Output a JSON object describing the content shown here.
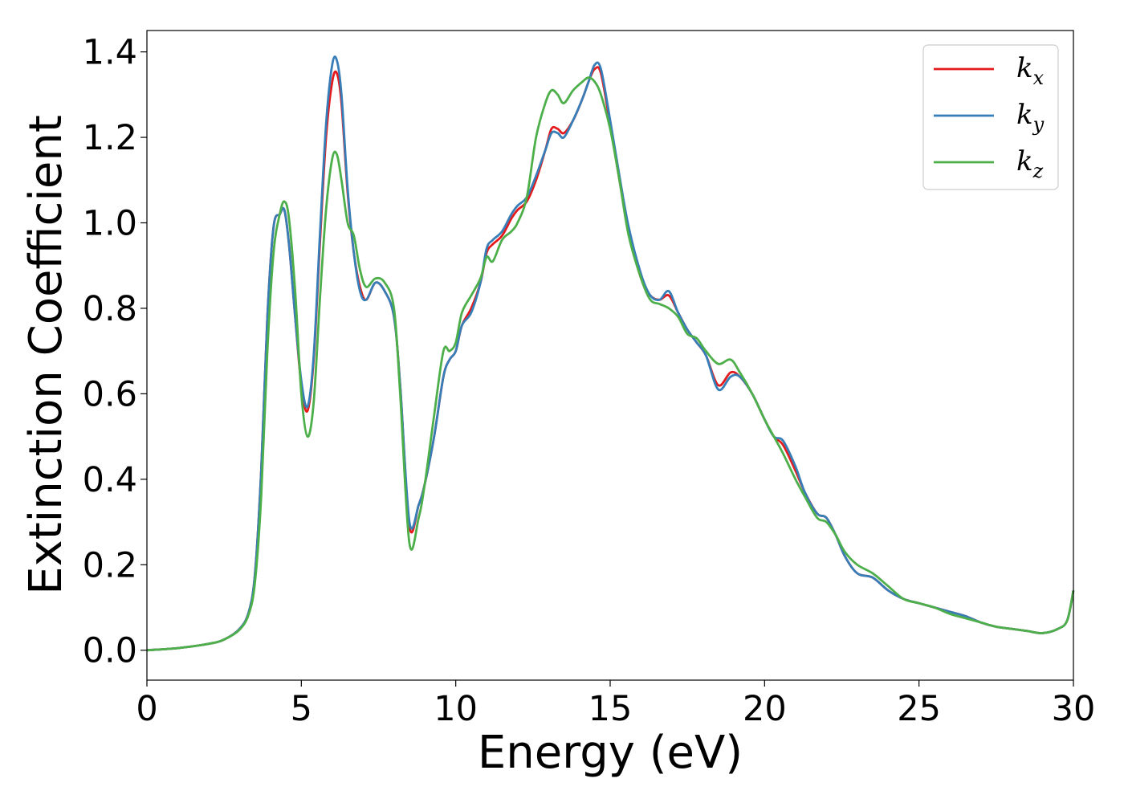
{
  "chart_data": {
    "type": "line",
    "title": "",
    "xlabel": "Energy (eV)",
    "ylabel": "Extinction Coefficient",
    "xlim": [
      0,
      30
    ],
    "ylim": [
      -0.07,
      1.45
    ],
    "xticks": [
      0,
      5,
      10,
      15,
      20,
      25,
      30
    ],
    "xtick_labels": [
      "0",
      "5",
      "10",
      "15",
      "20",
      "25",
      "30"
    ],
    "yticks": [
      0.0,
      0.2,
      0.4,
      0.6,
      0.8,
      1.0,
      1.2,
      1.4
    ],
    "ytick_labels": [
      "0.0",
      "0.2",
      "0.4",
      "0.6",
      "0.8",
      "1.0",
      "1.2",
      "1.4"
    ],
    "grid": false,
    "legend_position": "top-right",
    "series": [
      {
        "name": "k_x",
        "label_main": "k",
        "label_sub": "x",
        "color": "#e41a1c",
        "x": [
          0,
          1,
          2,
          2.5,
          3,
          3.3,
          3.5,
          3.7,
          3.9,
          4.1,
          4.3,
          4.45,
          4.6,
          4.8,
          5.0,
          5.2,
          5.4,
          5.6,
          5.8,
          6.0,
          6.15,
          6.3,
          6.5,
          6.7,
          6.9,
          7.1,
          7.4,
          7.7,
          8.0,
          8.2,
          8.5,
          8.8,
          9.0,
          9.3,
          9.6,
          9.8,
          10.0,
          10.2,
          10.5,
          10.8,
          11.0,
          11.2,
          11.5,
          11.8,
          12.0,
          12.3,
          12.6,
          12.9,
          13.1,
          13.3,
          13.5,
          13.8,
          14.1,
          14.3,
          14.5,
          14.7,
          15.0,
          15.3,
          15.6,
          16.0,
          16.3,
          16.6,
          16.9,
          17.2,
          17.5,
          17.8,
          18.1,
          18.5,
          18.9,
          19.2,
          19.6,
          20.0,
          20.3,
          20.6,
          21.0,
          21.3,
          21.7,
          22.0,
          22.3,
          22.6,
          23.0,
          23.5,
          24.0,
          24.5,
          25.0,
          25.5,
          26.0,
          26.5,
          27.0,
          27.5,
          28.0,
          28.5,
          29.0,
          29.5,
          29.8,
          30.0
        ],
        "y": [
          0.0,
          0.005,
          0.015,
          0.025,
          0.05,
          0.09,
          0.18,
          0.42,
          0.78,
          0.99,
          1.02,
          1.03,
          0.95,
          0.78,
          0.62,
          0.56,
          0.68,
          0.95,
          1.2,
          1.33,
          1.35,
          1.28,
          1.07,
          0.93,
          0.85,
          0.82,
          0.86,
          0.84,
          0.78,
          0.62,
          0.29,
          0.34,
          0.39,
          0.5,
          0.64,
          0.68,
          0.7,
          0.76,
          0.8,
          0.86,
          0.93,
          0.95,
          0.97,
          1.01,
          1.03,
          1.05,
          1.1,
          1.17,
          1.22,
          1.22,
          1.21,
          1.24,
          1.29,
          1.33,
          1.36,
          1.35,
          1.23,
          1.1,
          0.98,
          0.87,
          0.83,
          0.82,
          0.83,
          0.79,
          0.75,
          0.72,
          0.69,
          0.62,
          0.65,
          0.64,
          0.6,
          0.54,
          0.5,
          0.48,
          0.42,
          0.37,
          0.32,
          0.31,
          0.27,
          0.22,
          0.18,
          0.17,
          0.14,
          0.12,
          0.11,
          0.1,
          0.09,
          0.08,
          0.065,
          0.055,
          0.05,
          0.045,
          0.04,
          0.05,
          0.07,
          0.14
        ]
      },
      {
        "name": "k_y",
        "label_main": "k",
        "label_sub": "y",
        "color": "#377eb8",
        "x": [
          0,
          1,
          2,
          2.5,
          3,
          3.3,
          3.5,
          3.7,
          3.9,
          4.1,
          4.3,
          4.45,
          4.6,
          4.8,
          5.0,
          5.2,
          5.4,
          5.6,
          5.8,
          6.0,
          6.15,
          6.3,
          6.5,
          6.7,
          6.9,
          7.1,
          7.4,
          7.7,
          8.0,
          8.2,
          8.5,
          8.8,
          9.0,
          9.3,
          9.6,
          9.8,
          10.0,
          10.2,
          10.5,
          10.8,
          11.0,
          11.2,
          11.5,
          11.8,
          12.0,
          12.3,
          12.6,
          12.9,
          13.1,
          13.3,
          13.5,
          13.8,
          14.1,
          14.3,
          14.5,
          14.7,
          15.0,
          15.3,
          15.6,
          16.0,
          16.3,
          16.6,
          16.9,
          17.2,
          17.5,
          17.8,
          18.1,
          18.5,
          18.9,
          19.2,
          19.6,
          20.0,
          20.3,
          20.6,
          21.0,
          21.3,
          21.7,
          22.0,
          22.3,
          22.6,
          23.0,
          23.5,
          24.0,
          24.5,
          25.0,
          25.5,
          26.0,
          26.5,
          27.0,
          27.5,
          28.0,
          28.5,
          29.0,
          29.5,
          29.8,
          30.0
        ],
        "y": [
          0.0,
          0.005,
          0.015,
          0.025,
          0.05,
          0.09,
          0.18,
          0.42,
          0.78,
          0.99,
          1.02,
          1.03,
          0.95,
          0.78,
          0.63,
          0.57,
          0.69,
          0.97,
          1.23,
          1.37,
          1.38,
          1.3,
          1.08,
          0.93,
          0.84,
          0.82,
          0.86,
          0.84,
          0.78,
          0.62,
          0.3,
          0.34,
          0.39,
          0.5,
          0.64,
          0.68,
          0.7,
          0.76,
          0.79,
          0.86,
          0.94,
          0.96,
          0.98,
          1.02,
          1.04,
          1.06,
          1.11,
          1.17,
          1.21,
          1.21,
          1.2,
          1.24,
          1.29,
          1.33,
          1.37,
          1.36,
          1.24,
          1.11,
          0.99,
          0.88,
          0.83,
          0.82,
          0.84,
          0.79,
          0.75,
          0.72,
          0.69,
          0.61,
          0.64,
          0.64,
          0.6,
          0.54,
          0.5,
          0.49,
          0.43,
          0.37,
          0.32,
          0.31,
          0.27,
          0.22,
          0.18,
          0.17,
          0.14,
          0.12,
          0.11,
          0.1,
          0.09,
          0.08,
          0.065,
          0.055,
          0.05,
          0.045,
          0.04,
          0.05,
          0.07,
          0.14
        ]
      },
      {
        "name": "k_z",
        "label_main": "k",
        "label_sub": "z",
        "color": "#4daf4a",
        "x": [
          0,
          1,
          2,
          2.5,
          3,
          3.3,
          3.5,
          3.7,
          3.9,
          4.1,
          4.3,
          4.45,
          4.6,
          4.8,
          5.0,
          5.2,
          5.4,
          5.6,
          5.8,
          6.0,
          6.15,
          6.3,
          6.5,
          6.7,
          6.9,
          7.1,
          7.4,
          7.7,
          8.0,
          8.2,
          8.5,
          8.8,
          9.0,
          9.3,
          9.6,
          9.8,
          10.0,
          10.2,
          10.5,
          10.8,
          11.0,
          11.2,
          11.5,
          11.8,
          12.0,
          12.3,
          12.6,
          12.9,
          13.1,
          13.3,
          13.5,
          13.8,
          14.1,
          14.3,
          14.5,
          14.7,
          15.0,
          15.3,
          15.6,
          16.0,
          16.3,
          16.6,
          16.9,
          17.2,
          17.5,
          17.8,
          18.1,
          18.5,
          18.9,
          19.2,
          19.6,
          20.0,
          20.3,
          20.6,
          21.0,
          21.3,
          21.7,
          22.0,
          22.3,
          22.6,
          23.0,
          23.5,
          24.0,
          24.5,
          25.0,
          25.5,
          26.0,
          26.5,
          27.0,
          27.5,
          28.0,
          28.5,
          29.0,
          29.5,
          29.8,
          30.0
        ],
        "y": [
          0.0,
          0.005,
          0.015,
          0.025,
          0.048,
          0.085,
          0.16,
          0.36,
          0.7,
          0.93,
          1.02,
          1.05,
          1.01,
          0.84,
          0.6,
          0.5,
          0.58,
          0.82,
          1.03,
          1.15,
          1.16,
          1.1,
          1.0,
          0.97,
          0.89,
          0.85,
          0.87,
          0.86,
          0.8,
          0.6,
          0.25,
          0.31,
          0.39,
          0.55,
          0.7,
          0.7,
          0.72,
          0.79,
          0.83,
          0.87,
          0.92,
          0.91,
          0.96,
          0.98,
          1.0,
          1.06,
          1.2,
          1.28,
          1.31,
          1.3,
          1.28,
          1.31,
          1.33,
          1.34,
          1.33,
          1.3,
          1.22,
          1.1,
          0.97,
          0.87,
          0.82,
          0.81,
          0.8,
          0.78,
          0.74,
          0.73,
          0.7,
          0.67,
          0.68,
          0.65,
          0.6,
          0.54,
          0.5,
          0.46,
          0.4,
          0.36,
          0.31,
          0.3,
          0.27,
          0.23,
          0.2,
          0.18,
          0.15,
          0.12,
          0.11,
          0.1,
          0.085,
          0.075,
          0.065,
          0.055,
          0.05,
          0.045,
          0.04,
          0.05,
          0.07,
          0.14
        ]
      }
    ]
  }
}
